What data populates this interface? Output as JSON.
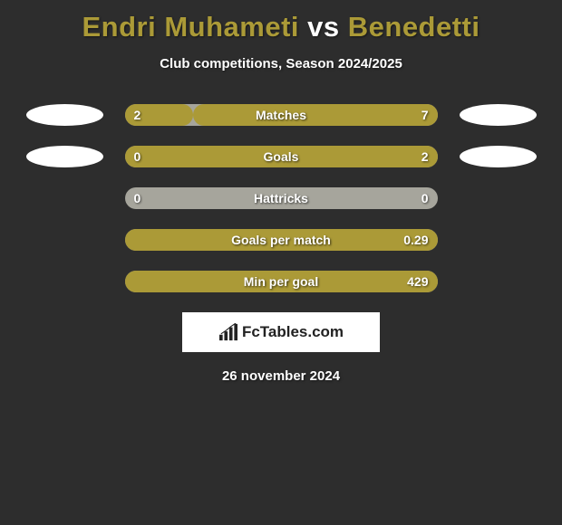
{
  "background_color": "#2d2d2d",
  "title": {
    "player1": "Endri Muhameti",
    "vs": "vs",
    "player2": "Benedetti",
    "p1_color": "#ab9a37",
    "vs_color": "#ffffff",
    "p2_color": "#ab9a37"
  },
  "subtitle": "Club competitions, Season 2024/2025",
  "accent_color": "#ab9a37",
  "bar_bg_color": "#a6a59c",
  "bar_fill_color": "#ab9a37",
  "badge_color": "#ffffff",
  "text_color": "#ffffff",
  "rows": [
    {
      "label": "Matches",
      "left": "2",
      "right": "7",
      "left_pct": 22,
      "right_pct": 78,
      "badges": true
    },
    {
      "label": "Goals",
      "left": "0",
      "right": "2",
      "left_pct": 0,
      "right_pct": 100,
      "badges": true
    },
    {
      "label": "Hattricks",
      "left": "0",
      "right": "0",
      "left_pct": 0,
      "right_pct": 0,
      "badges": false
    },
    {
      "label": "Goals per match",
      "left": "",
      "right": "0.29",
      "left_pct": 0,
      "right_pct": 100,
      "badges": false
    },
    {
      "label": "Min per goal",
      "left": "",
      "right": "429",
      "left_pct": 0,
      "right_pct": 100,
      "badges": false
    }
  ],
  "logo_text": "FcTables.com",
  "date": "26 november 2024"
}
